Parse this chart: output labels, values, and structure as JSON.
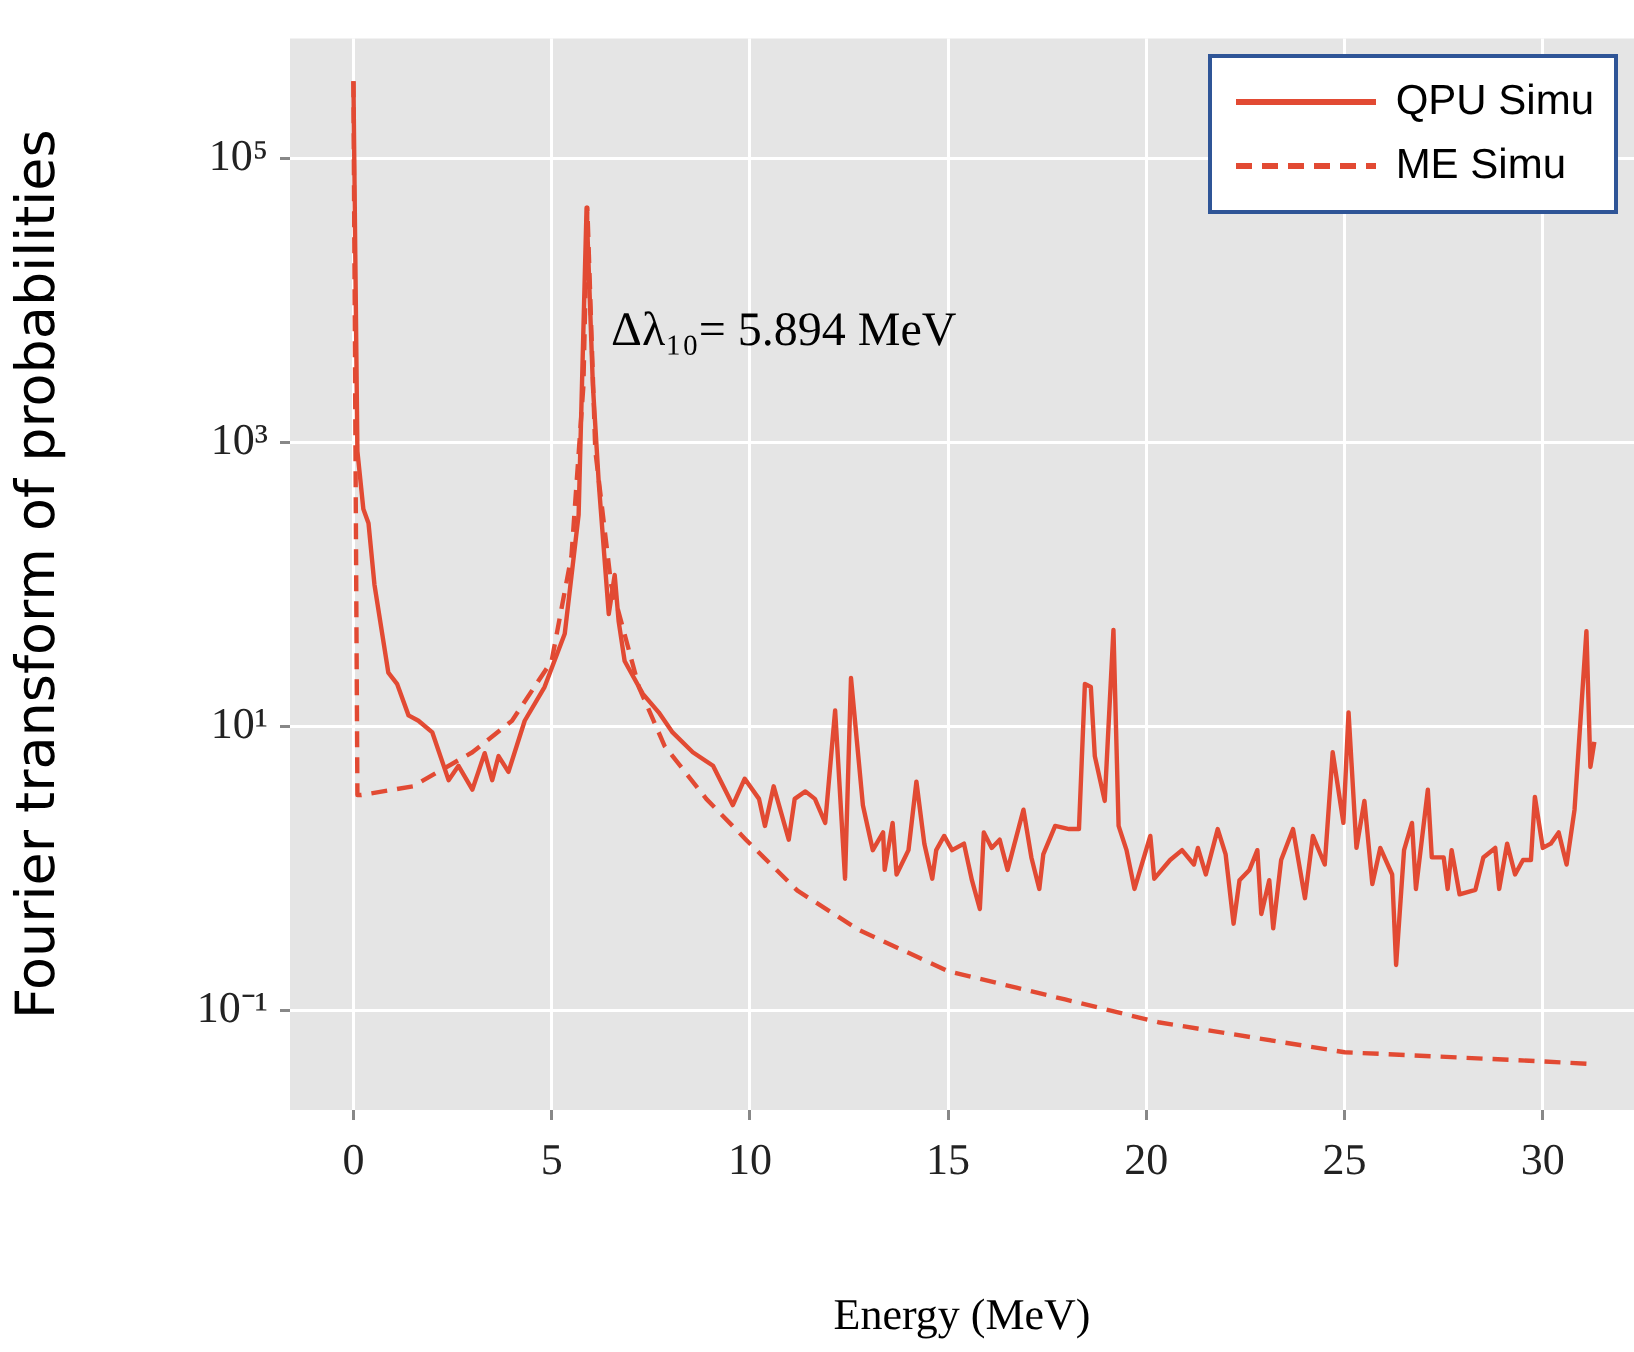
{
  "chart_data": {
    "type": "line",
    "xlabel": "Energy (MeV)",
    "ylabel": "Fourier transform of probabilities",
    "xlim": [
      -1.6,
      32.3
    ],
    "ylim": [
      0.02,
      700000
    ],
    "xticks": [
      0,
      5,
      10,
      15,
      20,
      25,
      30
    ],
    "yticks": [
      {
        "value": 0.1,
        "label": "10⁻¹"
      },
      {
        "value": 10,
        "label": "10¹"
      },
      {
        "value": 1000,
        "label": "10³"
      },
      {
        "value": 100000,
        "label": "10⁵"
      }
    ],
    "log": "y",
    "grid": true,
    "legend": "top right",
    "marker": "none",
    "annotations": [
      {
        "text": "Δλ₁₀= 5.894 MeV",
        "x": 5.894,
        "y": 2500
      }
    ],
    "series": [
      {
        "name": "QPU Simu",
        "color": "#e24a33",
        "line_style": "solid",
        "x": [
          0,
          0.1,
          0.25,
          0.38,
          0.53,
          0.88,
          1.1,
          1.39,
          1.64,
          1.99,
          2.4,
          2.65,
          3.0,
          3.31,
          3.5,
          3.66,
          3.91,
          4.32,
          4.82,
          5.33,
          5.68,
          5.88,
          6.04,
          6.19,
          6.44,
          6.59,
          6.69,
          6.84,
          7.3,
          7.7,
          8.05,
          8.56,
          9.07,
          9.57,
          9.87,
          10.23,
          10.38,
          10.6,
          10.98,
          11.13,
          11.4,
          11.64,
          11.9,
          12.15,
          12.4,
          12.55,
          12.85,
          13.1,
          13.36,
          13.4,
          13.6,
          13.7,
          14.0,
          14.2,
          14.4,
          14.6,
          14.7,
          14.9,
          15.1,
          15.4,
          15.6,
          15.8,
          15.9,
          16.1,
          16.3,
          16.5,
          16.9,
          17.1,
          17.3,
          17.4,
          17.7,
          18.05,
          18.3,
          18.45,
          18.6,
          18.7,
          18.95,
          19.17,
          19.3,
          19.5,
          19.7,
          20.1,
          20.2,
          20.6,
          20.9,
          21.2,
          21.3,
          21.5,
          21.8,
          22.0,
          22.2,
          22.35,
          22.6,
          22.8,
          22.9,
          23.1,
          23.2,
          23.4,
          23.7,
          24.0,
          24.2,
          24.5,
          24.7,
          24.97,
          25.1,
          25.3,
          25.5,
          25.7,
          25.9,
          26.2,
          26.3,
          26.5,
          26.7,
          26.8,
          27.1,
          27.2,
          27.5,
          27.6,
          27.7,
          27.9,
          28.3,
          28.5,
          28.8,
          28.9,
          29.1,
          29.3,
          29.5,
          29.7,
          29.8,
          30.0,
          30.2,
          30.4,
          30.6,
          30.8,
          31.1,
          31.2,
          31.3
        ],
        "values": [
          350000,
          870,
          340,
          270,
          100,
          24,
          20,
          12,
          11,
          9.1,
          4.2,
          5.3,
          3.6,
          6.5,
          4.2,
          6.2,
          4.8,
          11,
          19,
          45,
          310,
          45000,
          2500,
          510,
          62,
          117,
          55,
          29,
          17,
          12.6,
          9.1,
          6.6,
          5.3,
          2.8,
          4.3,
          3.1,
          2.0,
          3.8,
          1.6,
          3.1,
          3.5,
          3.1,
          2.1,
          13,
          0.85,
          22,
          2.8,
          1.35,
          1.8,
          0.98,
          2.1,
          0.91,
          1.35,
          4.1,
          1.5,
          0.85,
          1.35,
          1.7,
          1.35,
          1.5,
          0.83,
          0.52,
          1.8,
          1.4,
          1.6,
          0.98,
          2.6,
          1.2,
          0.72,
          1.26,
          2.0,
          1.9,
          1.9,
          20,
          19,
          6.2,
          3.0,
          48,
          2.0,
          1.35,
          0.72,
          1.7,
          0.85,
          1.15,
          1.35,
          1.07,
          1.4,
          0.91,
          1.9,
          1.26,
          0.41,
          0.83,
          0.98,
          1.35,
          0.48,
          0.83,
          0.38,
          1.15,
          1.9,
          0.62,
          1.7,
          1.07,
          6.6,
          2.1,
          12.6,
          1.4,
          3.0,
          0.78,
          1.4,
          0.91,
          0.21,
          1.35,
          2.1,
          0.72,
          3.6,
          1.2,
          1.2,
          0.72,
          1.35,
          0.66,
          0.71,
          1.2,
          1.4,
          0.72,
          1.5,
          0.91,
          1.15,
          1.15,
          3.2,
          1.4,
          1.5,
          1.8,
          1.07,
          2.6,
          47,
          5.2,
          7.8
        ]
      },
      {
        "name": "ME Simu",
        "color": "#e24a33",
        "line_style": "dashed",
        "x": [
          0,
          0.1,
          0.2,
          1.0,
          1.5,
          3.0,
          4.0,
          5.0,
          5.5,
          5.8,
          5.9,
          6.1,
          6.5,
          7.2,
          7.85,
          8.9,
          9.9,
          11.2,
          12.75,
          15.0,
          17.95,
          20.3,
          25.0,
          30.0,
          31.3
        ],
        "values": [
          350000,
          3.3,
          3.3,
          3.6,
          3.8,
          6.6,
          11,
          29,
          160,
          2500,
          45000,
          880,
          100,
          19,
          7.3,
          3.1,
          1.6,
          0.7,
          0.37,
          0.19,
          0.12,
          0.083,
          0.051,
          0.044,
          0.042
        ]
      }
    ]
  }
}
